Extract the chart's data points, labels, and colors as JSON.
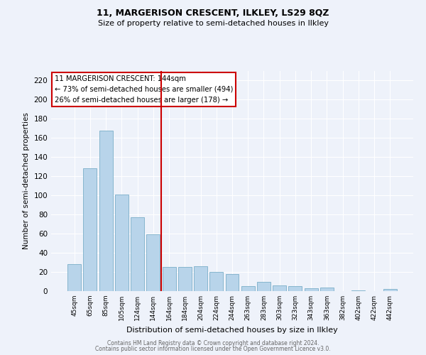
{
  "title_line1": "11, MARGERISON CRESCENT, ILKLEY, LS29 8QZ",
  "title_line2": "Size of property relative to semi-detached houses in Ilkley",
  "xlabel": "Distribution of semi-detached houses by size in Ilkley",
  "ylabel": "Number of semi-detached properties",
  "bar_labels": [
    "45sqm",
    "65sqm",
    "85sqm",
    "105sqm",
    "124sqm",
    "144sqm",
    "164sqm",
    "184sqm",
    "204sqm",
    "224sqm",
    "244sqm",
    "263sqm",
    "283sqm",
    "303sqm",
    "323sqm",
    "343sqm",
    "363sqm",
    "382sqm",
    "402sqm",
    "422sqm",
    "442sqm"
  ],
  "bar_values": [
    28,
    128,
    168,
    101,
    77,
    59,
    25,
    25,
    26,
    20,
    18,
    5,
    10,
    6,
    5,
    3,
    4,
    0,
    1,
    0,
    2
  ],
  "bar_color": "#b8d4ea",
  "bar_edge_color": "#7aaec8",
  "vline_color": "#cc0000",
  "annotation_line1": "11 MARGERISON CRESCENT: 144sqm",
  "annotation_line2": "← 73% of semi-detached houses are smaller (494)",
  "annotation_line3": "26% of semi-detached houses are larger (178) →",
  "ylim": [
    0,
    230
  ],
  "yticks": [
    0,
    20,
    40,
    60,
    80,
    100,
    120,
    140,
    160,
    180,
    200,
    220
  ],
  "footer_line1": "Contains HM Land Registry data © Crown copyright and database right 2024.",
  "footer_line2": "Contains public sector information licensed under the Open Government Licence v3.0.",
  "bg_color": "#eef2fa",
  "grid_color": "#ffffff"
}
